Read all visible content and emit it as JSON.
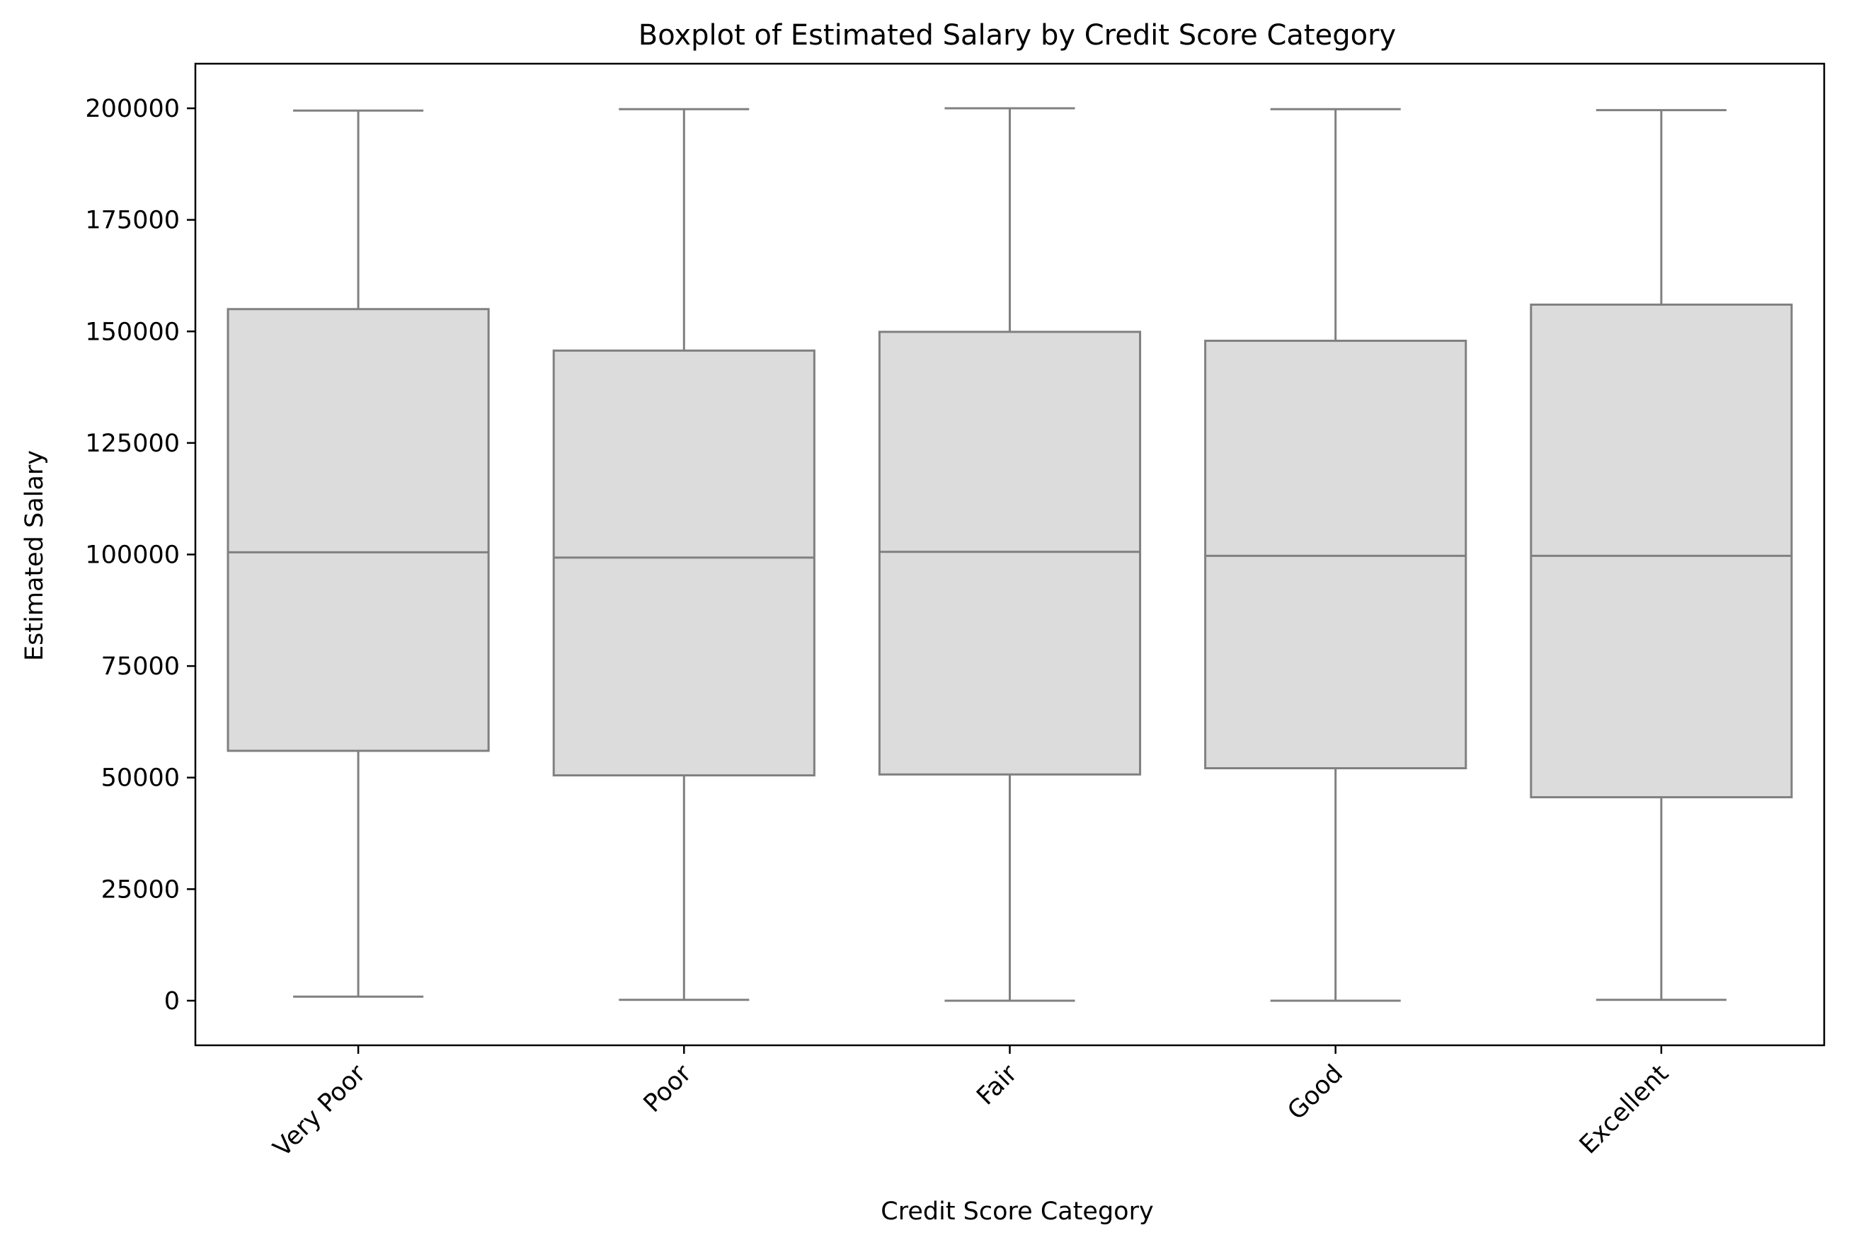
{
  "colors": {
    "box_fill": "#dcdcdc",
    "line": "#808080",
    "axis": "#000000",
    "background": "#ffffff"
  },
  "chart_data": {
    "type": "box",
    "title": "Boxplot of Estimated Salary by Credit Score Category",
    "xlabel": "Credit Score Category",
    "ylabel": "Estimated Salary",
    "ylim": [
      -10000,
      210000
    ],
    "yticks": [
      0,
      25000,
      50000,
      75000,
      100000,
      125000,
      150000,
      175000,
      200000
    ],
    "ytick_labels": [
      "0",
      "25000",
      "50000",
      "75000",
      "100000",
      "125000",
      "150000",
      "175000",
      "200000"
    ],
    "categories": [
      "Very Poor",
      "Poor",
      "Fair",
      "Good",
      "Excellent"
    ],
    "xtick_rotation_deg": 45,
    "grid": false,
    "legend": false,
    "boxes": [
      {
        "category": "Very Poor",
        "whisker_low": 900,
        "q1": 56000,
        "median": 100500,
        "q3": 155000,
        "whisker_high": 199500
      },
      {
        "category": "Poor",
        "whisker_low": 200,
        "q1": 50500,
        "median": 99300,
        "q3": 145700,
        "whisker_high": 199800
      },
      {
        "category": "Fair",
        "whisker_low": 0,
        "q1": 50700,
        "median": 100600,
        "q3": 149900,
        "whisker_high": 200000
      },
      {
        "category": "Good",
        "whisker_low": 0,
        "q1": 52100,
        "median": 99700,
        "q3": 147900,
        "whisker_high": 199800
      },
      {
        "category": "Excellent",
        "whisker_low": 200,
        "q1": 45600,
        "median": 99700,
        "q3": 156000,
        "whisker_high": 199600
      }
    ]
  }
}
